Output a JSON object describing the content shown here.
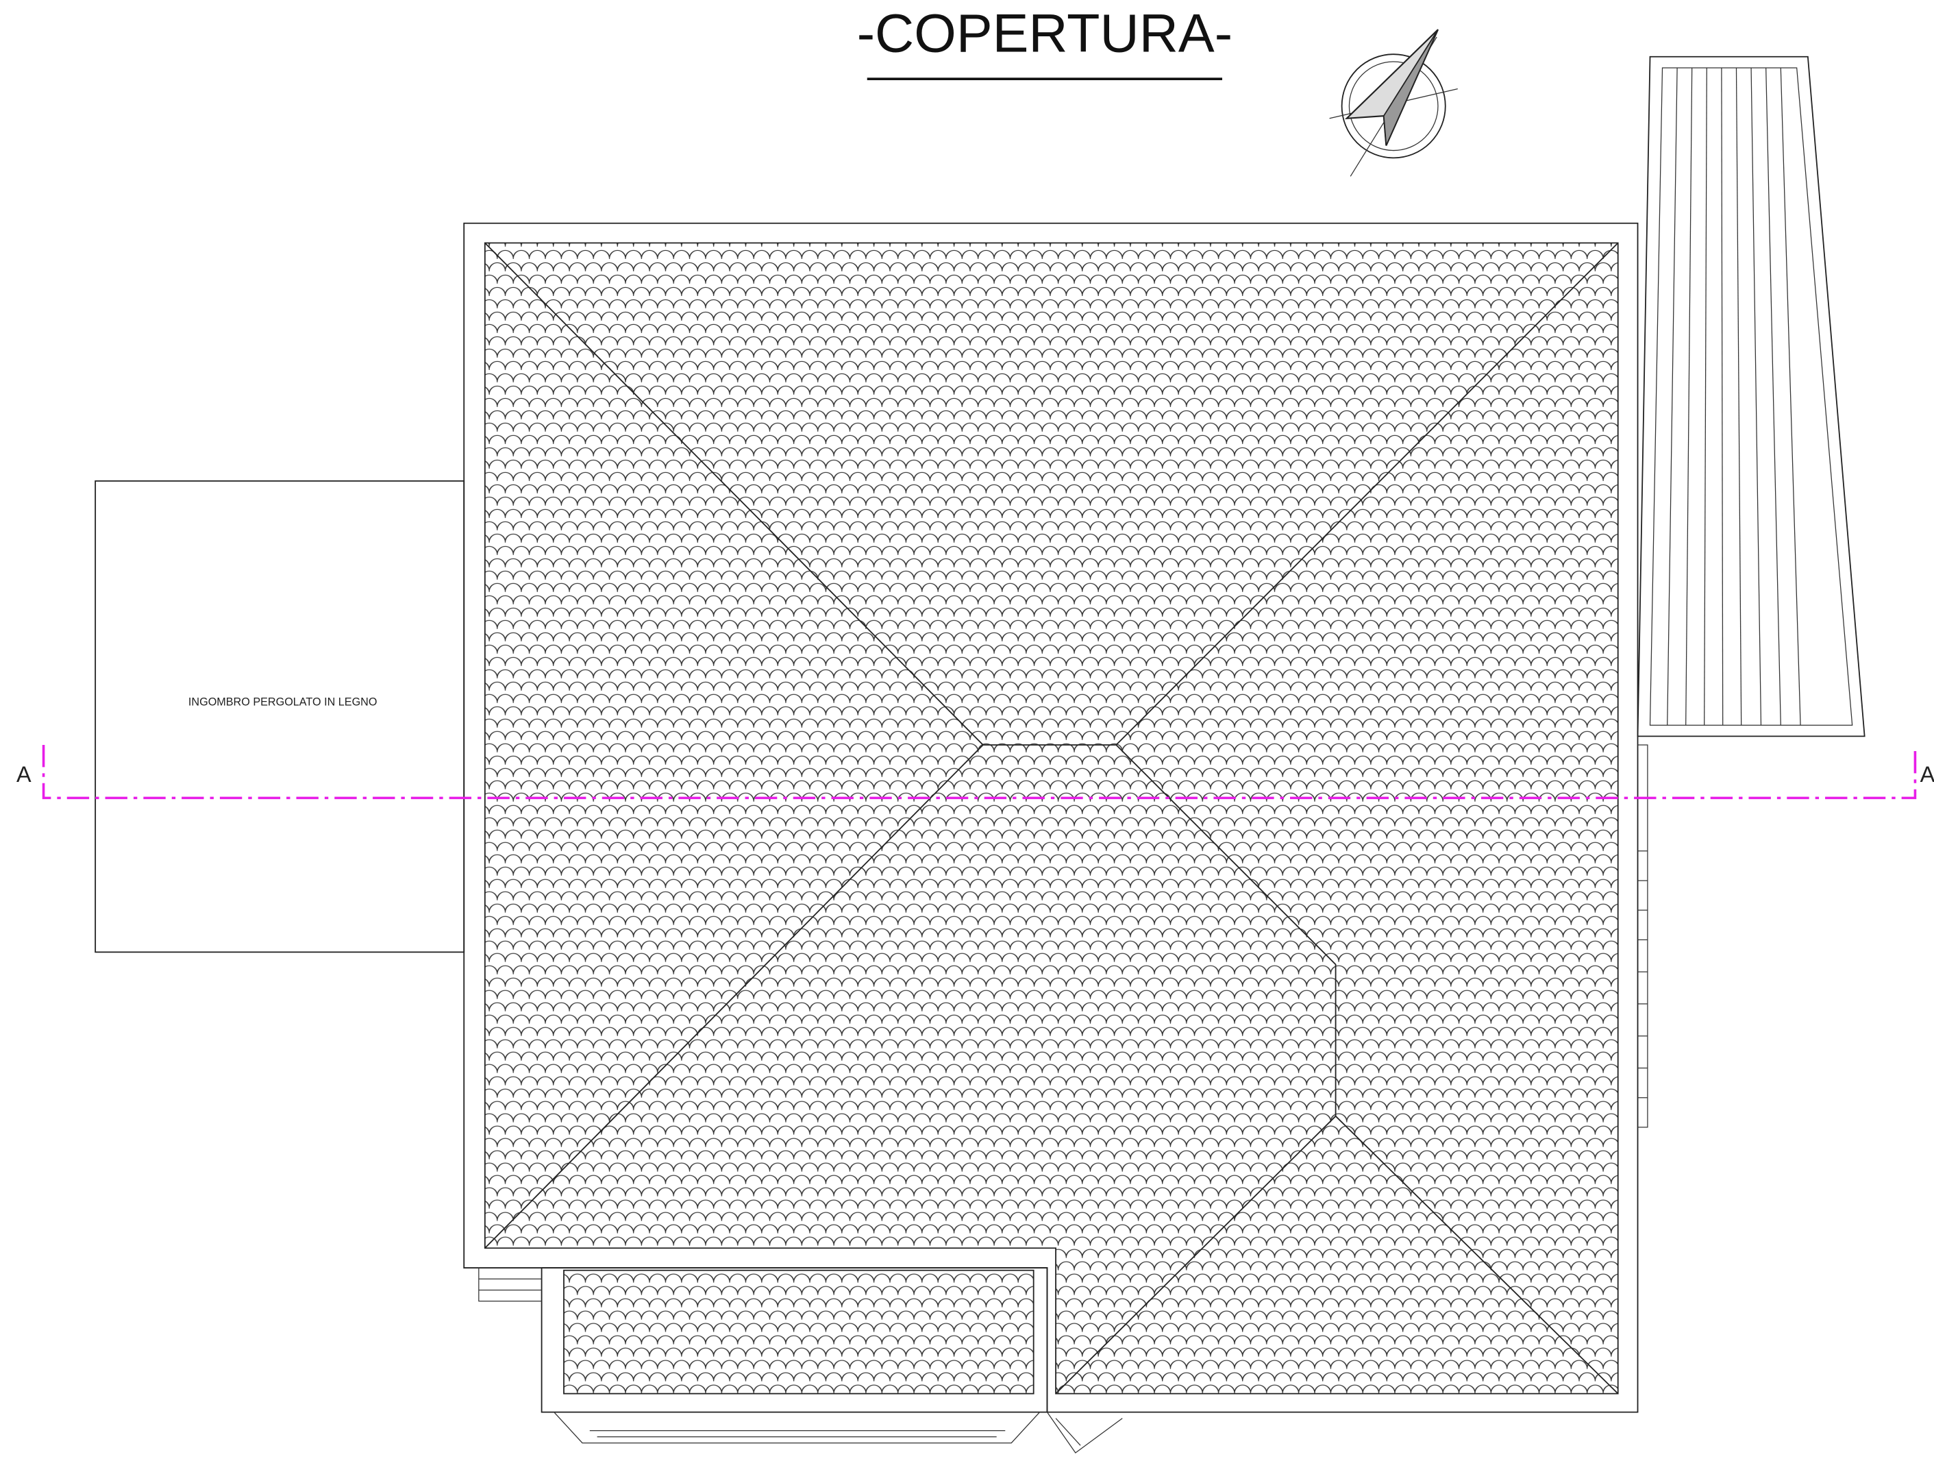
{
  "title": "-COPERTURA-",
  "labels": {
    "pergola": "INGOMBRO PERGOLATO IN LEGNO",
    "section_left": "A",
    "section_right": "A"
  }
}
